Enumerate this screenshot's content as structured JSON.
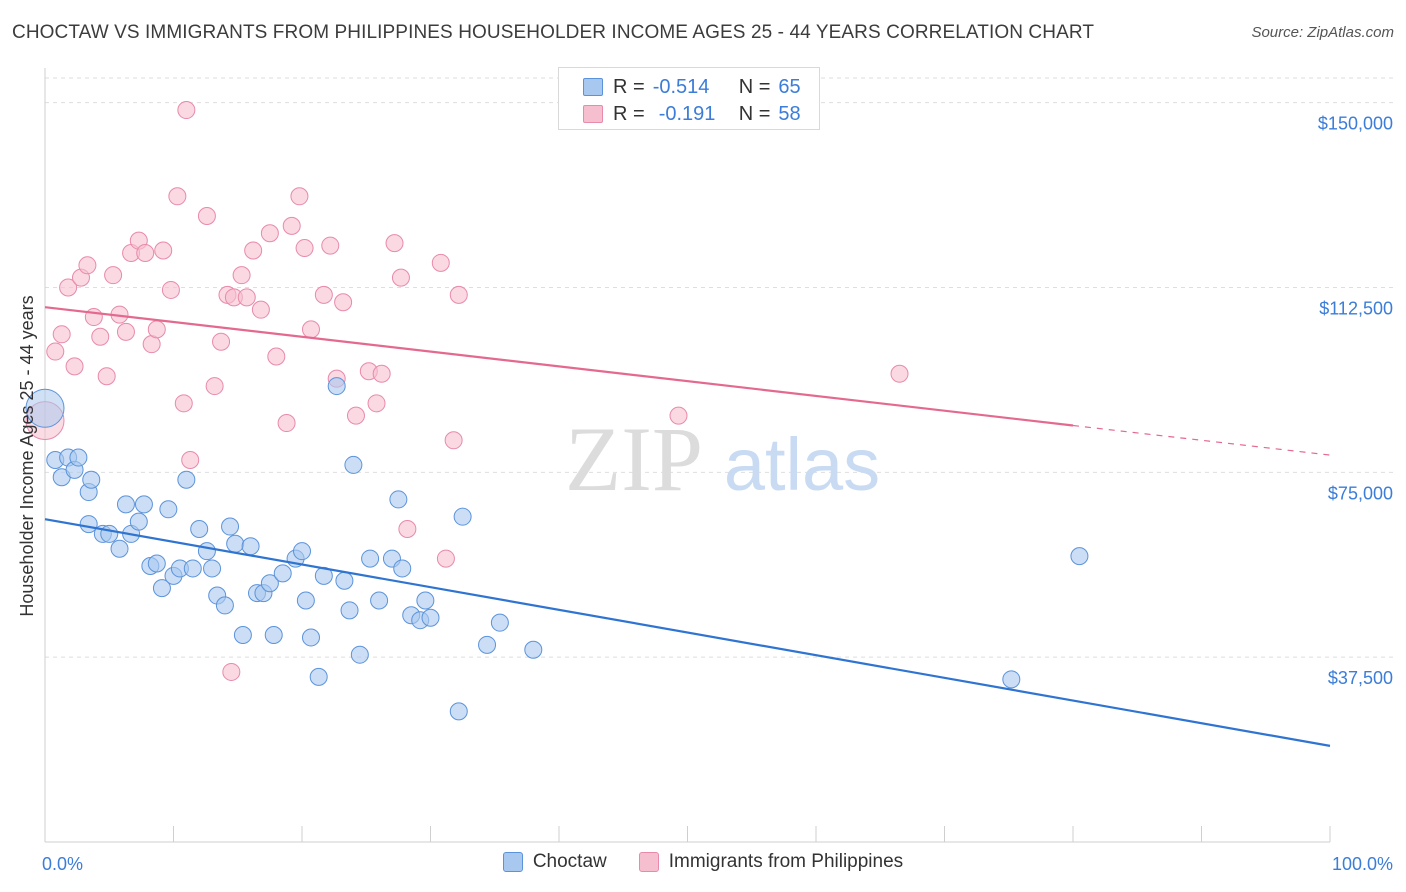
{
  "title": "CHOCTAW VS IMMIGRANTS FROM PHILIPPINES HOUSEHOLDER INCOME AGES 25 - 44 YEARS CORRELATION CHART",
  "source": "Source: ZipAtlas.com",
  "watermark": {
    "zip": "ZIP",
    "atlas": "atlas"
  },
  "legend": {
    "rows": [
      {
        "r_label": "R =",
        "r_value": "-0.514",
        "n_label": "N =",
        "n_value": "65"
      },
      {
        "r_label": "R =",
        "r_value": "-0.191",
        "n_label": "N =",
        "n_value": "58"
      }
    ]
  },
  "bottom_legend": [
    "Choctaw",
    "Immigrants from Philippines"
  ],
  "colors": {
    "choctaw_fill": "#a9c8ef",
    "choctaw_stroke": "#5b93db",
    "choctaw_line": "#2f74d0",
    "phil_fill": "#f6bfd0",
    "phil_stroke": "#e88aaa",
    "phil_line": "#e4698f",
    "axis_text": "#3b7dd8",
    "grid": "#dedede"
  },
  "chart_data": {
    "type": "scatter",
    "title": "CHOCTAW VS IMMIGRANTS FROM PHILIPPINES HOUSEHOLDER INCOME AGES 25 - 44 YEARS CORRELATION CHART",
    "xlabel": "",
    "ylabel": "Householder Income Ages 25 - 44 years",
    "xlim": [
      0,
      100
    ],
    "ylim": [
      0,
      155000
    ],
    "x_tick_labels": [
      "0.0%",
      "100.0%"
    ],
    "y_ticks": [
      37500,
      75000,
      112500,
      150000
    ],
    "y_tick_labels": [
      "$37,500",
      "$75,000",
      "$112,500",
      "$150,000"
    ],
    "grid": true,
    "legend_position": "top-center",
    "series": [
      {
        "name": "Choctaw",
        "r": -0.514,
        "n": 65,
        "trend": {
          "x": [
            0,
            100
          ],
          "y": [
            65500,
            19500
          ]
        },
        "points": [
          [
            0,
            88000
          ],
          [
            0.8,
            77500
          ],
          [
            1.3,
            74000
          ],
          [
            1.8,
            78000
          ],
          [
            2.3,
            75500
          ],
          [
            2.6,
            78000
          ],
          [
            3.4,
            71000
          ],
          [
            3.6,
            73500
          ],
          [
            3.4,
            64500
          ],
          [
            4.5,
            62500
          ],
          [
            5,
            62500
          ],
          [
            5.8,
            59500
          ],
          [
            6.3,
            68500
          ],
          [
            6.7,
            62500
          ],
          [
            7.3,
            65000
          ],
          [
            7.7,
            68500
          ],
          [
            8.2,
            56000
          ],
          [
            8.7,
            56500
          ],
          [
            9.1,
            51500
          ],
          [
            9.6,
            67500
          ],
          [
            10,
            54000
          ],
          [
            10.5,
            55500
          ],
          [
            11,
            73500
          ],
          [
            11.5,
            55500
          ],
          [
            12,
            63500
          ],
          [
            12.6,
            59000
          ],
          [
            13,
            55500
          ],
          [
            13.4,
            50000
          ],
          [
            14,
            48000
          ],
          [
            14.4,
            64000
          ],
          [
            14.8,
            60500
          ],
          [
            15.4,
            42000
          ],
          [
            16,
            60000
          ],
          [
            16.5,
            50500
          ],
          [
            17,
            50500
          ],
          [
            17.5,
            52500
          ],
          [
            17.8,
            42000
          ],
          [
            18.5,
            54500
          ],
          [
            19.5,
            57500
          ],
          [
            20,
            59000
          ],
          [
            20.3,
            49000
          ],
          [
            20.7,
            41500
          ],
          [
            21.3,
            33500
          ],
          [
            21.7,
            54000
          ],
          [
            22.7,
            92500
          ],
          [
            23.3,
            53000
          ],
          [
            23.7,
            47000
          ],
          [
            24,
            76500
          ],
          [
            24.5,
            38000
          ],
          [
            25.3,
            57500
          ],
          [
            26,
            49000
          ],
          [
            27,
            57500
          ],
          [
            27.5,
            69500
          ],
          [
            27.8,
            55500
          ],
          [
            28.5,
            46000
          ],
          [
            29.2,
            45000
          ],
          [
            29.6,
            49000
          ],
          [
            30,
            45500
          ],
          [
            32.2,
            26500
          ],
          [
            32.5,
            66000
          ],
          [
            34.4,
            40000
          ],
          [
            35.4,
            44500
          ],
          [
            38,
            39000
          ],
          [
            80.5,
            58000
          ],
          [
            75.2,
            33000
          ]
        ]
      },
      {
        "name": "Immigrants from Philippines",
        "r": -0.191,
        "n": 58,
        "trend": {
          "x": [
            0,
            80
          ],
          "y": [
            108500,
            84500
          ]
        },
        "trend_dashed": {
          "x": [
            80,
            100
          ],
          "y": [
            84500,
            78500
          ]
        },
        "points": [
          [
            0,
            85500
          ],
          [
            0.8,
            99500
          ],
          [
            1.3,
            103000
          ],
          [
            1.8,
            112500
          ],
          [
            2.3,
            96500
          ],
          [
            2.8,
            114500
          ],
          [
            3.3,
            117000
          ],
          [
            3.8,
            106500
          ],
          [
            4.3,
            102500
          ],
          [
            4.8,
            94500
          ],
          [
            5.3,
            115000
          ],
          [
            5.8,
            107000
          ],
          [
            6.3,
            103500
          ],
          [
            6.7,
            119500
          ],
          [
            7.3,
            122000
          ],
          [
            7.8,
            119500
          ],
          [
            8.3,
            101000
          ],
          [
            8.7,
            104000
          ],
          [
            9.2,
            120000
          ],
          [
            9.8,
            112000
          ],
          [
            10.3,
            131000
          ],
          [
            10.8,
            89000
          ],
          [
            11.3,
            77500
          ],
          [
            12.6,
            127000
          ],
          [
            13.2,
            92500
          ],
          [
            13.7,
            101500
          ],
          [
            14.2,
            111000
          ],
          [
            14.7,
            110500
          ],
          [
            15.3,
            115000
          ],
          [
            15.7,
            110500
          ],
          [
            16.2,
            120000
          ],
          [
            16.8,
            108000
          ],
          [
            17.5,
            123500
          ],
          [
            18,
            98500
          ],
          [
            18.8,
            85000
          ],
          [
            19.2,
            125000
          ],
          [
            19.8,
            131000
          ],
          [
            20.2,
            120500
          ],
          [
            20.7,
            104000
          ],
          [
            21.7,
            111000
          ],
          [
            22.2,
            121000
          ],
          [
            22.7,
            94000
          ],
          [
            23.2,
            109500
          ],
          [
            24.2,
            86500
          ],
          [
            25.2,
            95500
          ],
          [
            25.8,
            89000
          ],
          [
            26.2,
            95000
          ],
          [
            27.2,
            121500
          ],
          [
            27.7,
            114500
          ],
          [
            28.2,
            63500
          ],
          [
            30.8,
            117500
          ],
          [
            31.2,
            57500
          ],
          [
            31.8,
            81500
          ],
          [
            32.2,
            111000
          ],
          [
            11,
            148500
          ],
          [
            14.5,
            34500
          ],
          [
            49.3,
            86500
          ],
          [
            66.5,
            95000
          ]
        ]
      }
    ]
  }
}
